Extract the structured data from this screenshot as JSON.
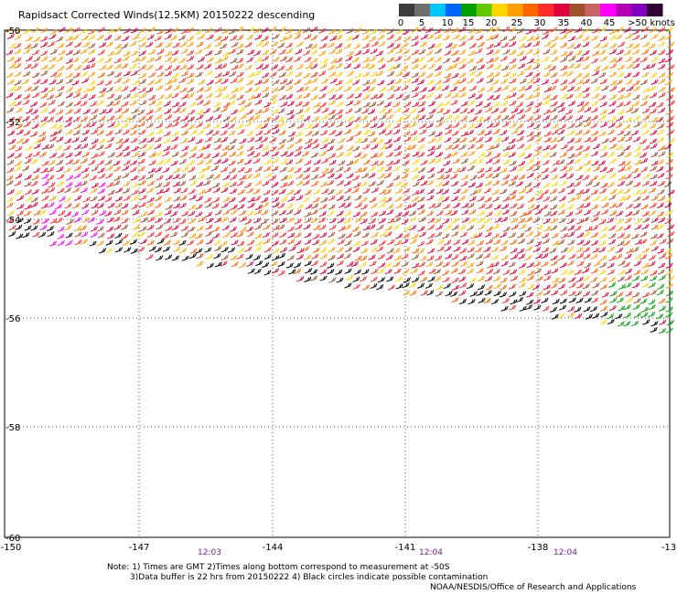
{
  "title": "Rapidsact Corrected Winds(12.5KM) 20150222 descending",
  "colorbar": {
    "labels": [
      "0",
      "5",
      "10",
      "15",
      "20",
      "25",
      "30",
      "35",
      "40",
      "45",
      ">50 knots"
    ],
    "colors": [
      "#3c3c3c",
      "#6e6e6e",
      "#00c8ff",
      "#0064ff",
      "#00a000",
      "#64c800",
      "#ffd700",
      "#ffa000",
      "#ff6400",
      "#ff2a2a",
      "#e0003c",
      "#a0522d",
      "#c86464",
      "#ff00ff",
      "#b400b4",
      "#8000c0",
      "#300030"
    ]
  },
  "axes": {
    "lat_labels": [
      "-50",
      "-52",
      "-54",
      "-56",
      "-58",
      "-60"
    ],
    "lon_labels": [
      "-150",
      "-147",
      "-144",
      "-141",
      "-138",
      "-13"
    ]
  },
  "times": [
    "12:03",
    "12:04",
    "12:04"
  ],
  "notes": {
    "line1": "Note: 1) Times are GMT 2)Times along bottom correspond to measurement at -50S",
    "line2": "3)Data buffer is 22 hrs from 20150222 4) Black circles indicate possible contamination"
  },
  "credit": "NOAA/NESDIS/Office of Research and Applications"
}
